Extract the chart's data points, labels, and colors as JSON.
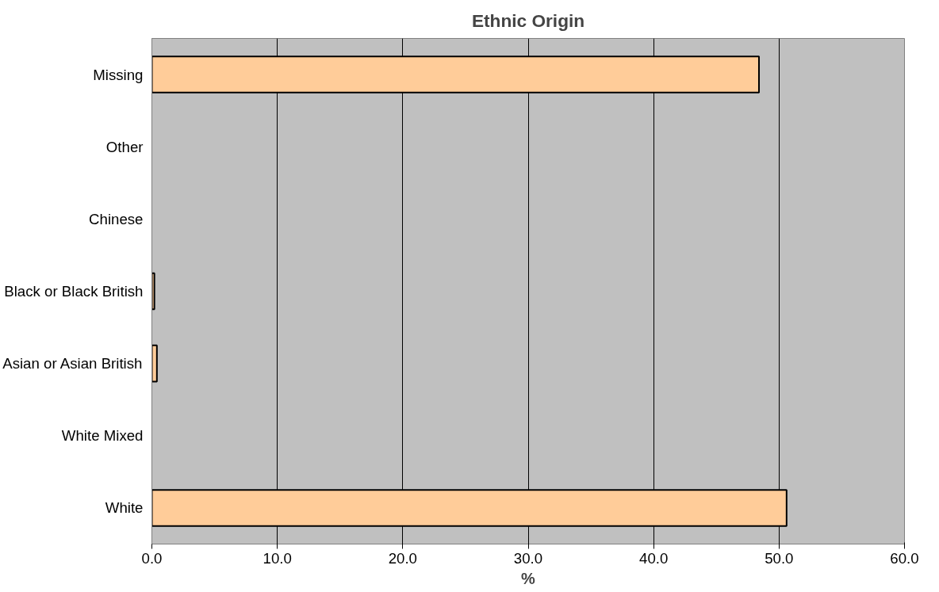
{
  "chart_data": {
    "type": "bar",
    "orientation": "horizontal",
    "title": "Ethnic Origin",
    "xlabel": "%",
    "categories": [
      "Missing",
      "Other",
      "Chinese",
      "Black or Black British",
      "Asian or Asian British",
      "White Mixed",
      "White"
    ],
    "values": [
      48.4,
      0,
      0,
      0.2,
      0.4,
      0,
      50.6
    ],
    "color": "#ffcc99",
    "xlim": [
      0,
      60
    ],
    "xticks": [
      {
        "value": 0,
        "label": "0.0"
      },
      {
        "value": 10,
        "label": "10.0"
      },
      {
        "value": 20,
        "label": "20.0"
      },
      {
        "value": 30,
        "label": "30.0"
      },
      {
        "value": 40,
        "label": "40.0"
      },
      {
        "value": 50,
        "label": "50.0"
      },
      {
        "value": 60,
        "label": "60.0"
      }
    ],
    "grid": "x"
  }
}
